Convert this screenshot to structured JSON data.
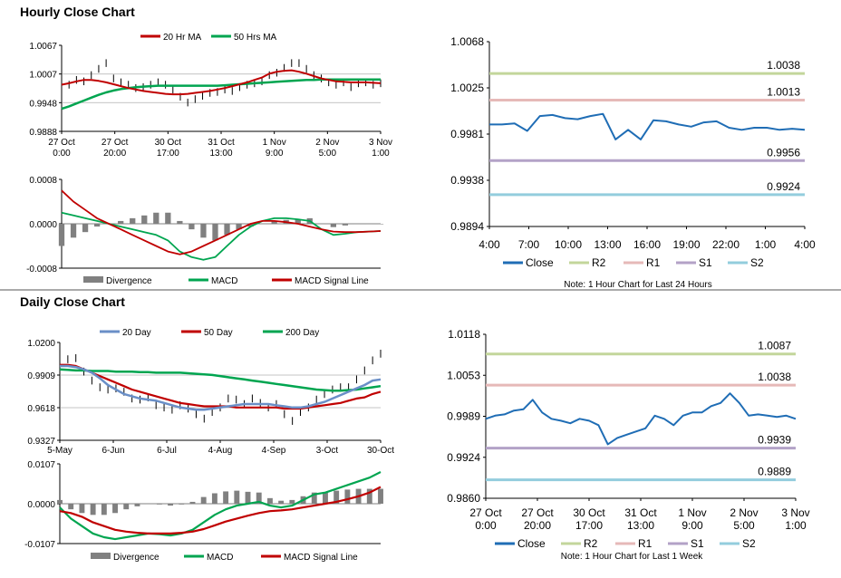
{
  "sections": {
    "hourly_title": "Hourly Close Chart",
    "daily_title": "Daily Close Chart"
  },
  "colors": {
    "red": "#c00000",
    "green": "#00a550",
    "blue": "#1f6db5",
    "lightblue": "#6a8fc7",
    "r2": "#c3d69b",
    "r1": "#e6b9b8",
    "s1": "#b3a2c7",
    "s2": "#93cddd",
    "divergence": "#808080"
  },
  "chart_data": [
    {
      "id": "hourly_price",
      "type": "line",
      "legend": [
        "20 Hr MA",
        "50 Hrs MA"
      ],
      "ylim": [
        0.9888,
        1.0067
      ],
      "yticks": [
        "1.0067",
        "1.0007",
        "0.9948",
        "0.9888"
      ],
      "xticks": [
        "27 Oct\n0:00",
        "27 Oct\n20:00",
        "30 Oct\n17:00",
        "31 Oct\n13:00",
        "1 Nov\n9:00",
        "2 Nov\n5:00",
        "3 Nov\n1:00"
      ],
      "price": [
        0.9975,
        0.9985,
        0.9995,
        0.9992,
        1.0005,
        1.0018,
        1.003,
        0.9998,
        0.999,
        0.9985,
        0.9978,
        0.998,
        0.9985,
        0.999,
        0.9985,
        0.9975,
        0.996,
        0.9948,
        0.9955,
        0.9962,
        0.9968,
        0.997,
        0.9975,
        0.9972,
        0.998,
        0.9985,
        0.9988,
        0.9992,
        1.0005,
        1.001,
        1.002,
        1.003,
        1.003,
        1.0018,
        1.0005,
        0.9998,
        0.999,
        0.9985,
        0.999,
        0.998,
        0.9988,
        0.999,
        0.9985,
        0.9988
      ],
      "ma20": [
        0.9985,
        0.9988,
        0.9992,
        0.9995,
        0.9995,
        0.9993,
        0.999,
        0.9986,
        0.9982,
        0.9978,
        0.9975,
        0.9972,
        0.997,
        0.9968,
        0.9966,
        0.9965,
        0.9965,
        0.9966,
        0.9968,
        0.997,
        0.9972,
        0.9975,
        0.9978,
        0.9982,
        0.9986,
        0.999,
        0.9995,
        1.0,
        1.0008,
        1.0012,
        1.0014,
        1.0015,
        1.0012,
        1.0008,
        1.0003,
        0.9998,
        0.9995,
        0.9992,
        0.9991,
        0.999,
        0.999,
        0.999,
        0.9989,
        0.9988
      ],
      "ma50": [
        0.9935,
        0.994,
        0.9946,
        0.9952,
        0.9958,
        0.9964,
        0.9969,
        0.9973,
        0.9976,
        0.9978,
        0.998,
        0.9981,
        0.9982,
        0.9983,
        0.9983,
        0.9983,
        0.9983,
        0.9983,
        0.9983,
        0.9983,
        0.9983,
        0.9983,
        0.9984,
        0.9985,
        0.9986,
        0.9987,
        0.9988,
        0.9989,
        0.999,
        0.9991,
        0.9992,
        0.9993,
        0.9994,
        0.9995,
        0.9995,
        0.9996,
        0.9996,
        0.9996,
        0.9996,
        0.9996,
        0.9996,
        0.9996,
        0.9996,
        0.9996
      ]
    },
    {
      "id": "hourly_macd",
      "type": "line",
      "legend": [
        "Divergence",
        "MACD",
        "MACD Signal Line"
      ],
      "ylim": [
        -0.0008,
        0.0008
      ],
      "yticks": [
        "0.0008",
        "0.0000",
        "-0.0008"
      ],
      "macd": [
        0.0002,
        0.00015,
        0.0001,
        5e-05,
        0.0,
        -5e-05,
        -0.0001,
        -0.00015,
        -0.0002,
        -0.0003,
        -0.0005,
        -0.0006,
        -0.00065,
        -0.0006,
        -0.0004,
        -0.0002,
        -5e-05,
        5e-05,
        0.0001,
        0.0001,
        8e-05,
        5e-05,
        -0.0001,
        -0.0002,
        -0.00018,
        -0.00015,
        -0.00014,
        -0.00013
      ],
      "signal": [
        0.0006,
        0.0004,
        0.00025,
        0.0001,
        0.0,
        -0.0001,
        -0.0002,
        -0.0003,
        -0.0004,
        -0.0005,
        -0.00055,
        -0.0005,
        -0.0004,
        -0.0003,
        -0.0002,
        -0.0001,
        0.0,
        5e-05,
        5e-05,
        3e-05,
        0.0,
        -5e-05,
        -0.0001,
        -0.00014,
        -0.00015,
        -0.00015,
        -0.00014,
        -0.00013
      ],
      "divergence": [
        -0.0004,
        -0.00025,
        -0.00015,
        -5e-05,
        0.0,
        5e-05,
        0.0001,
        0.00015,
        0.0002,
        0.0002,
        5e-05,
        -0.0001,
        -0.00025,
        -0.0003,
        -0.0002,
        -0.0001,
        -5e-05,
        0.0,
        5e-05,
        7e-05,
        8e-05,
        0.0001,
        0.0,
        -6e-05,
        -3e-05,
        0.0,
        0.0,
        0.0
      ]
    },
    {
      "id": "hourly_levels",
      "type": "line",
      "ylim": [
        0.9894,
        1.0068
      ],
      "yticks": [
        "1.0068",
        "1.0025",
        "0.9981",
        "0.9938",
        "0.9894"
      ],
      "xticks": [
        "4:00",
        "7:00",
        "10:00",
        "13:00",
        "16:00",
        "19:00",
        "22:00",
        "1:00",
        "4:00"
      ],
      "close": [
        0.999,
        0.999,
        0.9991,
        0.9984,
        0.9998,
        0.9999,
        0.9996,
        0.9995,
        0.9998,
        1.0,
        0.9976,
        0.9985,
        0.9976,
        0.9994,
        0.9993,
        0.999,
        0.9988,
        0.9992,
        0.9993,
        0.9987,
        0.9985,
        0.9987,
        0.9987,
        0.9985,
        0.9986,
        0.9985
      ],
      "levels": [
        {
          "name": "R2",
          "value": 1.0038,
          "label": "1.0038"
        },
        {
          "name": "R1",
          "value": 1.0013,
          "label": "1.0013"
        },
        {
          "name": "S1",
          "value": 0.9956,
          "label": "0.9956"
        },
        {
          "name": "S2",
          "value": 0.9924,
          "label": "0.9924"
        }
      ],
      "legend": [
        "Close",
        "R2",
        "R1",
        "S1",
        "S2"
      ],
      "note": "Note: 1 Hour Chart for Last 24 Hours"
    },
    {
      "id": "daily_price",
      "type": "line",
      "legend": [
        "20 Day",
        "50 Day",
        "200 Day"
      ],
      "ylim": [
        0.9327,
        1.02
      ],
      "yticks": [
        "1.0200",
        "0.9909",
        "0.9618",
        "0.9327"
      ],
      "xticks": [
        "5-May",
        "6-Jun",
        "6-Jul",
        "4-Aug",
        "4-Sep",
        "3-Oct",
        "30-Oct"
      ],
      "price": [
        0.996,
        1.005,
        1.006,
        0.994,
        0.986,
        0.98,
        0.978,
        0.979,
        0.976,
        0.97,
        0.969,
        0.971,
        0.964,
        0.962,
        0.96,
        0.964,
        0.961,
        0.956,
        0.952,
        0.958,
        0.962,
        0.97,
        0.969,
        0.965,
        0.97,
        0.966,
        0.962,
        0.965,
        0.956,
        0.95,
        0.958,
        0.962,
        0.969,
        0.974,
        0.978,
        0.98,
        0.98,
        0.987,
        0.995,
        1.004,
        1.01
      ],
      "ma20": [
        0.999,
        0.999,
        0.998,
        0.996,
        0.993,
        0.988,
        0.982,
        0.978,
        0.974,
        0.972,
        0.97,
        0.969,
        0.968,
        0.966,
        0.964,
        0.962,
        0.961,
        0.96,
        0.96,
        0.961,
        0.962,
        0.963,
        0.964,
        0.965,
        0.965,
        0.965,
        0.965,
        0.964,
        0.963,
        0.962,
        0.962,
        0.963,
        0.965,
        0.967,
        0.97,
        0.973,
        0.976,
        0.979,
        0.982,
        0.986,
        0.987
      ],
      "ma50": [
        1.0,
        1.0,
        0.999,
        0.996,
        0.993,
        0.99,
        0.987,
        0.984,
        0.981,
        0.978,
        0.976,
        0.974,
        0.972,
        0.97,
        0.968,
        0.966,
        0.965,
        0.964,
        0.963,
        0.963,
        0.963,
        0.963,
        0.962,
        0.962,
        0.962,
        0.962,
        0.962,
        0.962,
        0.961,
        0.961,
        0.961,
        0.962,
        0.963,
        0.964,
        0.965,
        0.966,
        0.968,
        0.97,
        0.971,
        0.974,
        0.976
      ],
      "ma200": [
        0.996,
        0.9955,
        0.995,
        0.995,
        0.9945,
        0.9945,
        0.9945,
        0.994,
        0.994,
        0.994,
        0.9935,
        0.9935,
        0.993,
        0.993,
        0.993,
        0.993,
        0.9925,
        0.992,
        0.9915,
        0.991,
        0.99,
        0.989,
        0.988,
        0.987,
        0.986,
        0.985,
        0.984,
        0.983,
        0.982,
        0.981,
        0.98,
        0.979,
        0.978,
        0.9775,
        0.977,
        0.977,
        0.9775,
        0.978,
        0.979,
        0.98,
        0.981
      ]
    },
    {
      "id": "daily_macd",
      "type": "line",
      "legend": [
        "Divergence",
        "MACD",
        "MACD Signal Line"
      ],
      "ylim": [
        -0.0107,
        0.0107
      ],
      "yticks": [
        "0.0107",
        "0.0000",
        "-0.0107"
      ],
      "macd": [
        -0.001,
        -0.004,
        -0.006,
        -0.008,
        -0.009,
        -0.0095,
        -0.009,
        -0.0085,
        -0.008,
        -0.0082,
        -0.0085,
        -0.008,
        -0.007,
        -0.005,
        -0.003,
        -0.0015,
        -0.0005,
        0.0,
        0.0005,
        -0.0005,
        -0.001,
        -0.0005,
        0.001,
        0.0025,
        0.003,
        0.004,
        0.005,
        0.006,
        0.007,
        0.0085
      ],
      "signal": [
        -0.002,
        -0.0025,
        -0.0035,
        -0.005,
        -0.006,
        -0.007,
        -0.0075,
        -0.0078,
        -0.008,
        -0.008,
        -0.008,
        -0.0078,
        -0.0075,
        -0.0068,
        -0.0058,
        -0.0048,
        -0.004,
        -0.0032,
        -0.0025,
        -0.002,
        -0.0018,
        -0.0015,
        -0.001,
        -0.0005,
        0.0,
        0.0005,
        0.0012,
        0.002,
        0.003,
        0.0045
      ],
      "divergence": [
        0.001,
        -0.0015,
        -0.0025,
        -0.003,
        -0.003,
        -0.0025,
        -0.0015,
        -0.0007,
        0.0,
        -0.0002,
        -0.0005,
        -0.0002,
        0.0005,
        0.0018,
        0.0028,
        0.0033,
        0.0035,
        0.0032,
        0.003,
        0.0015,
        0.0008,
        0.001,
        0.002,
        0.003,
        0.003,
        0.0035,
        0.0038,
        0.004,
        0.004,
        0.004
      ]
    },
    {
      "id": "weekly_levels",
      "type": "line",
      "ylim": [
        0.986,
        1.0118
      ],
      "yticks": [
        "1.0118",
        "1.0053",
        "0.9989",
        "0.9924",
        "0.9860"
      ],
      "xticks": [
        "27 Oct\n0:00",
        "27 Oct\n20:00",
        "30 Oct\n17:00",
        "31 Oct\n13:00",
        "1 Nov\n9:00",
        "2 Nov\n5:00",
        "3 Nov\n1:00"
      ],
      "close": [
        0.9985,
        0.999,
        0.9992,
        0.9998,
        1.0,
        1.0015,
        0.9995,
        0.9985,
        0.9982,
        0.9978,
        0.9985,
        0.9982,
        0.9975,
        0.9945,
        0.9955,
        0.996,
        0.9965,
        0.997,
        0.999,
        0.9985,
        0.9975,
        0.999,
        0.9995,
        0.9995,
        1.0005,
        1.001,
        1.0025,
        1.001,
        0.999,
        0.9992,
        0.999,
        0.9988,
        0.999,
        0.9985
      ],
      "levels": [
        {
          "name": "R2",
          "value": 1.0087,
          "label": "1.0087"
        },
        {
          "name": "R1",
          "value": 1.0038,
          "label": "1.0038"
        },
        {
          "name": "S1",
          "value": 0.9939,
          "label": "0.9939"
        },
        {
          "name": "S2",
          "value": 0.9889,
          "label": "0.9889"
        }
      ],
      "legend": [
        "Close",
        "R2",
        "R1",
        "S1",
        "S2"
      ],
      "note": "Note: 1 Hour Chart for Last 1 Week"
    }
  ]
}
